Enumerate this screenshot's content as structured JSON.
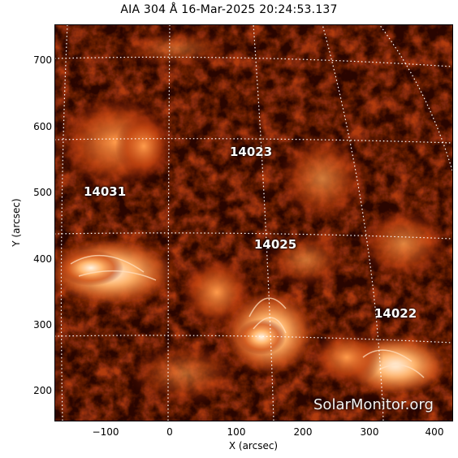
{
  "title": "AIA 304 Å 16-Mar-2025 20:24:53.137",
  "axes": {
    "x_label": "X (arcsec)",
    "y_label": "Y (arcsec)",
    "x_ticks": [
      "−100",
      "0",
      "100",
      "200",
      "300",
      "400"
    ],
    "y_ticks": [
      "700",
      "600",
      "500",
      "400",
      "300",
      "200"
    ]
  },
  "regions": [
    {
      "id": "14023"
    },
    {
      "id": "14031"
    },
    {
      "id": "14025"
    },
    {
      "id": "14022"
    }
  ],
  "watermark": "SolarMonitor.org",
  "colors": {
    "background": "#2a0500",
    "mid": "#a52a0a",
    "bright": "#ffb070",
    "grid": "#ffffff"
  }
}
